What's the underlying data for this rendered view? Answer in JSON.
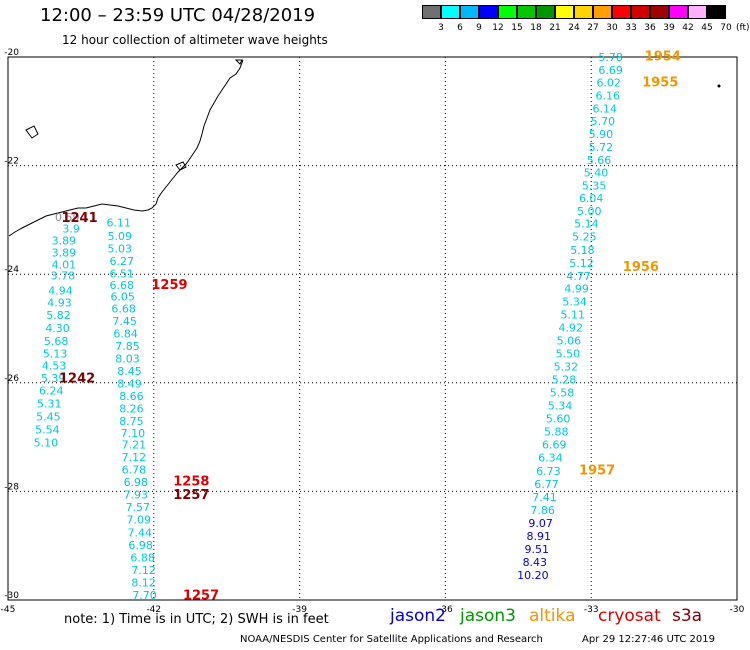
{
  "header": {
    "title": "12:00 – 23:59 UTC 04/28/2019",
    "subtitle": "12 hour collection of altimeter wave heights"
  },
  "color_scale": {
    "labels": [
      "3",
      "6",
      "9",
      "12",
      "15",
      "18",
      "21",
      "24",
      "27",
      "30",
      "33",
      "36",
      "39",
      "42",
      "45",
      "70"
    ],
    "unit": "(ft)",
    "colors": [
      "#707070",
      "#00ffff",
      "#00b8ff",
      "#0000ff",
      "#00ff00",
      "#00c800",
      "#009600",
      "#ffff00",
      "#ffd200",
      "#ffa000",
      "#ff0000",
      "#d00000",
      "#a00000",
      "#ff00ff",
      "#ffb0ff",
      "#000000"
    ]
  },
  "axes": {
    "x_ticks": [
      "-45",
      "-42",
      "-39",
      "-36",
      "-33",
      "-30"
    ],
    "y_ticks": [
      "-20",
      "-22",
      "-24",
      "-26",
      "-28",
      "-30"
    ],
    "lon_range": [
      -45,
      -30
    ],
    "lat_range": [
      -30,
      -20
    ]
  },
  "tracks": [
    {
      "label": "1241",
      "color": "#800000",
      "anchor": [
        -43.9,
        -22.95
      ],
      "points": [
        [
          -43.78,
          -22.95,
          "0.59",
          "#8c8c8c"
        ],
        [
          -43.7,
          -23.16,
          "3.9",
          "#00c8dc"
        ],
        [
          -43.85,
          -23.38,
          "3.89",
          "#00c8dc"
        ],
        [
          -43.85,
          -23.6,
          "3.89",
          "#00c8dc"
        ],
        [
          -43.85,
          -23.82,
          "4.01",
          "#00c8dc"
        ],
        [
          -43.87,
          -24.02,
          "3.78",
          "#00c8dc"
        ],
        [
          -43.92,
          -24.3,
          "4.94",
          "#00c8dc"
        ],
        [
          -43.94,
          -24.52,
          "4.93",
          "#00c8dc"
        ],
        [
          -43.96,
          -24.75,
          "5.82",
          "#00c8dc"
        ],
        [
          -43.98,
          -24.99,
          "4.30",
          "#00c8dc"
        ],
        [
          -44.01,
          -25.23,
          "5.68",
          "#00c8dc"
        ],
        [
          -44.03,
          -25.46,
          "5.13",
          "#00c8dc"
        ],
        [
          -44.05,
          -25.68,
          "4.53",
          "#00c8dc"
        ],
        [
          -44.07,
          -25.91,
          "5.39",
          "#00c8dc"
        ],
        [
          -44.11,
          -26.14,
          "6.24",
          "#00c8dc"
        ],
        [
          -44.15,
          -26.38,
          "5.31",
          "#00c8dc"
        ],
        [
          -44.17,
          -26.62,
          "5.45",
          "#00c8dc"
        ],
        [
          -44.19,
          -26.86,
          "5.54",
          "#00c8dc"
        ],
        [
          -44.22,
          -27.1,
          "5.10",
          "#00c8dc"
        ]
      ]
    },
    {
      "label": "1242",
      "color": "#800000",
      "anchor": [
        -43.95,
        -25.9
      ],
      "points": []
    },
    {
      "label": "1259",
      "color": "#dc0000",
      "anchor": [
        -42.05,
        -24.18
      ],
      "points": [
        [
          -42.72,
          -23.05,
          "6.11",
          "#00c8dc"
        ],
        [
          -42.7,
          -23.3,
          "5.09",
          "#00c8dc"
        ],
        [
          -42.7,
          -23.53,
          "5.03",
          "#00c8dc"
        ],
        [
          -42.66,
          -23.76,
          "6.27",
          "#00c8dc"
        ],
        [
          -42.66,
          -23.99,
          "6.51",
          "#00c8dc"
        ],
        [
          -42.66,
          -24.2,
          "6.68",
          "#00c8dc"
        ],
        [
          -42.64,
          -24.41,
          "6.05",
          "#00c8dc"
        ],
        [
          -42.62,
          -24.63,
          "6.68",
          "#00c8dc"
        ],
        [
          -42.6,
          -24.86,
          "7.45",
          "#00c8dc"
        ],
        [
          -42.58,
          -25.09,
          "6.84",
          "#00c8dc"
        ],
        [
          -42.54,
          -25.32,
          "7.85",
          "#00c8dc"
        ],
        [
          -42.54,
          -25.55,
          "8.03",
          "#00c8dc"
        ],
        [
          -42.5,
          -25.78,
          "8.45",
          "#00c8dc"
        ],
        [
          -42.5,
          -26.01,
          "8.49",
          "#00c8dc"
        ],
        [
          -42.46,
          -26.24,
          "8.66",
          "#00c8dc"
        ],
        [
          -42.46,
          -26.47,
          "8.26",
          "#00c8dc"
        ],
        [
          -42.46,
          -26.7,
          "8.75",
          "#00c8dc"
        ],
        [
          -42.43,
          -26.92,
          "7.10",
          "#00c8dc"
        ],
        [
          -42.41,
          -27.14,
          "7.21",
          "#00c8dc"
        ],
        [
          -42.41,
          -27.37,
          "7.12",
          "#00c8dc"
        ],
        [
          -42.41,
          -27.6,
          "6.78",
          "#00c8dc"
        ],
        [
          -42.37,
          -27.83,
          "6.98",
          "#00c8dc"
        ],
        [
          -42.37,
          -28.06,
          "7.93",
          "#00c8dc"
        ],
        [
          -42.33,
          -28.29,
          "7.57",
          "#00c8dc"
        ],
        [
          -42.31,
          -28.52,
          "7.09",
          "#00c8dc"
        ],
        [
          -42.29,
          -28.76,
          "7.44",
          "#00c8dc"
        ],
        [
          -42.27,
          -28.99,
          "6.98",
          "#00c8dc"
        ],
        [
          -42.23,
          -29.22,
          "6.88",
          "#00c8dc"
        ],
        [
          -42.21,
          -29.45,
          "7.12",
          "#00c8dc"
        ],
        [
          -42.21,
          -29.68,
          "8.12",
          "#00c8dc"
        ],
        [
          -42.19,
          -29.91,
          "7.70",
          "#00c8dc"
        ]
      ]
    },
    {
      "label": "1258",
      "color": "#dc0000",
      "anchor": [
        -41.6,
        -27.8
      ],
      "points": []
    },
    {
      "label": "1257",
      "color": "#800000",
      "anchor": [
        -41.6,
        -28.05
      ],
      "points": []
    },
    {
      "label": "1257",
      "color": "#dc0000",
      "anchor": [
        -41.4,
        -29.9
      ],
      "points": []
    },
    {
      "label": "1954",
      "color": "#f09600",
      "anchor": [
        -31.9,
        -19.97
      ],
      "points": [
        [
          -32.6,
          -20.0,
          "5.78",
          "#00c8dc"
        ],
        [
          -32.6,
          -20.24,
          "6.69",
          "#00c8dc"
        ],
        [
          -32.64,
          -20.47,
          "6.02",
          "#00c8dc"
        ],
        [
          -32.66,
          -20.71,
          "6.16",
          "#00c8dc"
        ],
        [
          -32.72,
          -20.95,
          "6.14",
          "#00c8dc"
        ],
        [
          -32.76,
          -21.18,
          "5.70",
          "#00c8dc"
        ],
        [
          -32.8,
          -21.42,
          "5.90",
          "#00c8dc"
        ],
        [
          -32.8,
          -21.66,
          "5.72",
          "#00c8dc"
        ],
        [
          -32.84,
          -21.9,
          "5.66",
          "#00c8dc"
        ],
        [
          -32.9,
          -22.13,
          "5.40",
          "#00c8dc"
        ],
        [
          -32.94,
          -22.37,
          "5.35",
          "#00c8dc"
        ],
        [
          -33.0,
          -22.6,
          "6.04",
          "#00c8dc"
        ],
        [
          -33.04,
          -22.84,
          "5.00",
          "#00c8dc"
        ],
        [
          -33.1,
          -23.07,
          "5.14",
          "#00c8dc"
        ],
        [
          -33.14,
          -23.31,
          "5.25",
          "#00c8dc"
        ],
        [
          -33.18,
          -23.55,
          "5.18",
          "#00c8dc"
        ],
        [
          -33.2,
          -23.79,
          "5.12",
          "#00c8dc"
        ],
        [
          -33.26,
          -24.03,
          "4.77",
          "#00c8dc"
        ],
        [
          -33.3,
          -24.26,
          "4.99",
          "#00c8dc"
        ],
        [
          -33.34,
          -24.5,
          "5.34",
          "#00c8dc"
        ],
        [
          -33.38,
          -24.74,
          "5.11",
          "#00c8dc"
        ],
        [
          -33.42,
          -24.98,
          "4.92",
          "#00c8dc"
        ],
        [
          -33.46,
          -25.22,
          "5.06",
          "#00c8dc"
        ],
        [
          -33.48,
          -25.46,
          "5.50",
          "#00c8dc"
        ],
        [
          -33.52,
          -25.7,
          "5.32",
          "#00c8dc"
        ],
        [
          -33.56,
          -25.94,
          "5.28",
          "#00c8dc"
        ],
        [
          -33.6,
          -26.18,
          "5.58",
          "#00c8dc"
        ],
        [
          -33.64,
          -26.42,
          "5.34",
          "#00c8dc"
        ],
        [
          -33.68,
          -26.66,
          "5.60",
          "#00c8dc"
        ],
        [
          -33.72,
          -26.9,
          "5.88",
          "#00c8dc"
        ],
        [
          -33.76,
          -27.14,
          "6.69",
          "#00c8dc"
        ],
        [
          -33.84,
          -27.38,
          "6.34",
          "#00c8dc"
        ],
        [
          -33.88,
          -27.62,
          "6.73",
          "#00c8dc"
        ],
        [
          -33.92,
          -27.86,
          "6.77",
          "#00c8dc"
        ],
        [
          -33.96,
          -28.1,
          "7.41",
          "#00c8dc"
        ],
        [
          -34.0,
          -28.34,
          "7.86",
          "#00c8dc"
        ],
        [
          -34.04,
          -28.58,
          "9.07",
          "#0000dc"
        ],
        [
          -34.08,
          -28.82,
          "8.91",
          "#0000dc"
        ],
        [
          -34.12,
          -29.06,
          "9.51",
          "#0000dc"
        ],
        [
          -34.16,
          -29.3,
          "8.43",
          "#0000dc"
        ],
        [
          -34.2,
          -29.54,
          "10.20",
          "#0000dc"
        ]
      ]
    },
    {
      "label": "1955",
      "color": "#f09600",
      "anchor": [
        -31.95,
        -20.45
      ],
      "points": []
    },
    {
      "label": "1956",
      "color": "#f09600",
      "anchor": [
        -32.35,
        -23.85
      ],
      "points": []
    },
    {
      "label": "1957",
      "color": "#f09600",
      "anchor": [
        -33.25,
        -27.6
      ],
      "points": []
    }
  ],
  "footer": {
    "note": "note:  1) Time is in UTC;  2) SWH is in feet",
    "satellites": [
      {
        "name": "jason2",
        "color": "#0000dc"
      },
      {
        "name": "jason3",
        "color": "#009600"
      },
      {
        "name": "altika",
        "color": "#f09600"
      },
      {
        "name": "cryosat",
        "color": "#dc0000"
      },
      {
        "name": "s3a",
        "color": "#800000"
      }
    ],
    "credit": "NOAA/NESDIS Center for Satellite Applications and Research",
    "timestamp": "Apr 29 12:27:46 UTC 2019"
  }
}
